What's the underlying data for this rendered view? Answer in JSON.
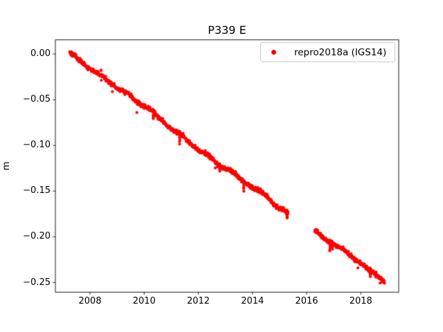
{
  "figure": {
    "background": "#ffffff"
  },
  "chart_data": {
    "type": "scatter",
    "title": "P339 E",
    "xlabel": "",
    "ylabel": "m",
    "xlim": [
      2006.72,
      2019.4
    ],
    "ylim": [
      -0.2605,
      0.0155
    ],
    "xticks": [
      2008,
      2010,
      2012,
      2014,
      2016,
      2018
    ],
    "xtick_labels": [
      "2008",
      "2010",
      "2012",
      "2014",
      "2016",
      "2018"
    ],
    "yticks": [
      0.0,
      -0.05,
      -0.1,
      -0.15,
      -0.2,
      -0.25
    ],
    "ytick_labels": [
      "0.00",
      "−0.05",
      "−0.10",
      "−0.15",
      "−0.20",
      "−0.25"
    ],
    "grid": false,
    "frame_color": "#000000",
    "legend": {
      "position": "upper right",
      "entries": [
        {
          "label": "repro2018a (IGS14)",
          "color": "#ff0000",
          "marker": "dot"
        }
      ]
    },
    "series": [
      {
        "name": "repro2018a (IGS14)",
        "color": "#ff0000",
        "marker": "dot",
        "marker_radius_px": 2.1,
        "trend_slope_m_per_yr": -0.0222,
        "gap": [
          2015.32,
          2016.3
        ],
        "segments": [
          {
            "x_start": 2007.25,
            "x_end": 2015.32,
            "trend_anchors": [
              [
                2007.25,
                0.0005
              ],
              [
                2008.0,
                -0.015
              ],
              [
                2009.0,
                -0.037
              ],
              [
                2010.0,
                -0.0585
              ],
              [
                2011.0,
                -0.0805
              ],
              [
                2012.0,
                -0.103
              ],
              [
                2013.0,
                -0.125
              ],
              [
                2014.0,
                -0.1465
              ],
              [
                2015.0,
                -0.169
              ],
              [
                2015.32,
                -0.176
              ]
            ]
          },
          {
            "x_start": 2016.3,
            "x_end": 2018.88,
            "trend_anchors": [
              [
                2016.3,
                -0.1935
              ],
              [
                2017.0,
                -0.2075
              ],
              [
                2018.0,
                -0.229
              ],
              [
                2018.88,
                -0.2475
              ]
            ]
          }
        ],
        "outliers": [
          [
            2009.73,
            -0.064
          ]
        ],
        "dips": [
          [
            2010.34,
            -0.0705
          ],
          [
            2011.31,
            -0.098
          ],
          [
            2012.79,
            -0.128
          ],
          [
            2013.68,
            -0.15
          ],
          [
            2015.28,
            -0.18
          ],
          [
            2016.86,
            -0.216
          ],
          [
            2016.95,
            -0.213
          ],
          [
            2018.35,
            -0.243
          ]
        ],
        "noise": {
          "white_sigma": 0.0011,
          "seasonal_amp": 0.0013,
          "walk_clamp": 0.0022,
          "step_years": 0.008,
          "spike_prob": 0.003,
          "spike_max": 0.009
        }
      }
    ]
  }
}
